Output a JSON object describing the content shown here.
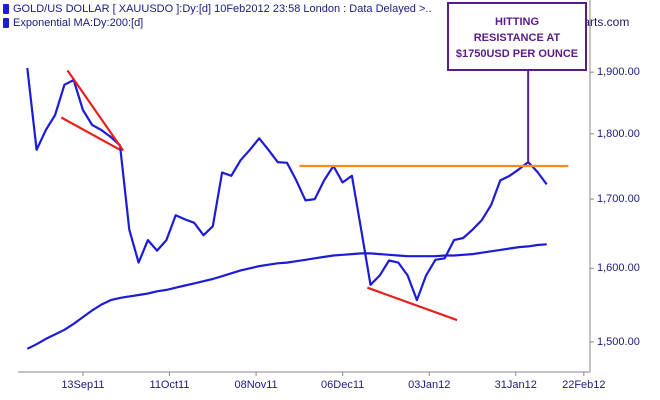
{
  "chart_data": {
    "type": "line",
    "watermark": "www.incrediblecharts.com",
    "log_y": true,
    "x": [
      "2011-08-26",
      "2011-08-29",
      "2011-09-01",
      "2011-09-04",
      "2011-09-07",
      "2011-09-10",
      "2011-09-13",
      "2011-09-16",
      "2011-09-19",
      "2011-09-22",
      "2011-09-25",
      "2011-09-28",
      "2011-10-01",
      "2011-10-04",
      "2011-10-07",
      "2011-10-10",
      "2011-10-13",
      "2011-10-16",
      "2011-10-19",
      "2011-10-22",
      "2011-10-25",
      "2011-10-28",
      "2011-10-31",
      "2011-11-03",
      "2011-11-06",
      "2011-11-09",
      "2011-11-12",
      "2011-11-15",
      "2011-11-18",
      "2011-11-21",
      "2011-11-24",
      "2011-11-27",
      "2011-11-30",
      "2011-12-03",
      "2011-12-06",
      "2011-12-09",
      "2011-12-12",
      "2011-12-15",
      "2011-12-18",
      "2011-12-21",
      "2011-12-24",
      "2011-12-27",
      "2011-12-30",
      "2012-01-02",
      "2012-01-05",
      "2012-01-08",
      "2012-01-11",
      "2012-01-14",
      "2012-01-17",
      "2012-01-20",
      "2012-01-23",
      "2012-01-26",
      "2012-01-29",
      "2012-02-01",
      "2012-02-04",
      "2012-02-07",
      "2012-02-10"
    ],
    "series": [
      {
        "name": "GOLD/US DOLLAR [ XAUUSDO ]:Dy:[d]  10Feb2012 23:58 London : Data Delayed >..",
        "color": "#1c1cd6",
        "values": [
          1907,
          1775,
          1806,
          1830,
          1879,
          1887,
          1838,
          1814,
          1806,
          1795,
          1782,
          1655,
          1608,
          1640,
          1625,
          1640,
          1676,
          1670,
          1665,
          1647,
          1660,
          1740,
          1735,
          1759,
          1775,
          1793,
          1775,
          1756,
          1755,
          1728,
          1698,
          1700,
          1728,
          1750,
          1725,
          1735,
          1655,
          1577,
          1590,
          1611,
          1608,
          1590,
          1556,
          1590,
          1612,
          1614,
          1640,
          1643,
          1655,
          1669,
          1691,
          1728,
          1735,
          1745,
          1756,
          1741,
          1722
        ]
      },
      {
        "name": "Exponential MA:Dy:200:[d]",
        "color": "#1c1cd6",
        "values": [
          1491,
          1497,
          1504,
          1510,
          1516,
          1524,
          1533,
          1542,
          1550,
          1556,
          1559,
          1561,
          1563,
          1565,
          1568,
          1570,
          1573,
          1576,
          1579,
          1582,
          1585,
          1589,
          1593,
          1597,
          1600,
          1603,
          1605,
          1607,
          1608,
          1610,
          1612,
          1614,
          1616,
          1618,
          1619,
          1620,
          1621,
          1621,
          1620,
          1619,
          1618,
          1617,
          1617,
          1617,
          1617,
          1618,
          1618,
          1619,
          1620,
          1622,
          1624,
          1626,
          1628,
          1630,
          1631,
          1633,
          1634
        ]
      }
    ],
    "xlim": [
      "2011-08-23",
      "2012-02-24"
    ],
    "xticks": [
      {
        "value": "2011-09-13",
        "label": "13Sep11"
      },
      {
        "value": "2011-10-11",
        "label": "11Oct11"
      },
      {
        "value": "2011-11-08",
        "label": "08Nov11"
      },
      {
        "value": "2011-12-06",
        "label": "06Dec11"
      },
      {
        "value": "2012-01-03",
        "label": "03Jan12"
      },
      {
        "value": "2012-01-31",
        "label": "31Jan12"
      },
      {
        "value": "2012-02-22",
        "label": "22Feb12"
      }
    ],
    "ylim": [
      1461,
      2024
    ],
    "yticks": [
      {
        "value": 1500,
        "label": "1,500.00"
      },
      {
        "value": 1600,
        "label": "1,600.00"
      },
      {
        "value": 1700,
        "label": "1,700.00"
      },
      {
        "value": 1800,
        "label": "1,800.00"
      },
      {
        "value": 1900,
        "label": "1,900.00"
      }
    ],
    "trendlines": [
      {
        "color": "#e8201c",
        "x": [
          "2011-09-06",
          "2011-09-25"
        ],
        "values": [
          1826,
          1775
        ]
      },
      {
        "color": "#e8201c",
        "x": [
          "2011-09-08",
          "2011-09-26"
        ],
        "values": [
          1903,
          1774
        ]
      },
      {
        "color": "#e8201c",
        "x": [
          "2011-12-14",
          "2012-01-12"
        ],
        "values": [
          1573,
          1529
        ]
      },
      {
        "color": "#f28c1e",
        "x": [
          "2011-11-22",
          "2012-02-17"
        ],
        "values": [
          1750,
          1750
        ]
      }
    ],
    "callout": {
      "color": "#5a1a8a",
      "x": "2012-02-04",
      "value": 1755,
      "lines": [
        "HITTING",
        "RESISTANCE AT",
        "$1750USD PER OUNCE"
      ]
    }
  }
}
